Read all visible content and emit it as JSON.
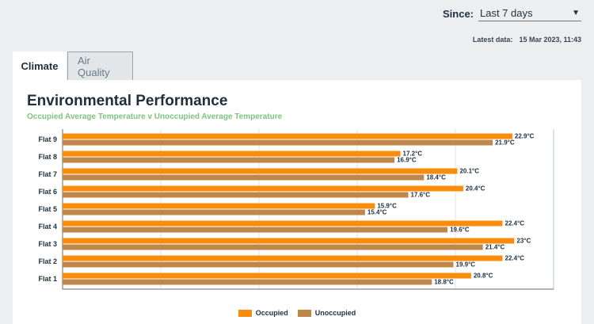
{
  "since": {
    "label": "Since:",
    "selected": "Last 7 days"
  },
  "latest": {
    "label": "Latest data:",
    "value": "15 Mar 2023, 11:43"
  },
  "tabs": [
    {
      "label": "Climate",
      "active": true
    },
    {
      "label": "Air Quality",
      "active": false
    }
  ],
  "colors": {
    "occupied": "#f98c0a",
    "unoccupied": "#c0874b",
    "subtitle": "#7cc47f"
  },
  "chart_data": {
    "type": "bar",
    "orientation": "horizontal",
    "title": "Environmental Performance",
    "subtitle": "Occupied Average Temperature v Unoccupied Average Temperature",
    "categories": [
      "Flat 9",
      "Flat 8",
      "Flat 7",
      "Flat 6",
      "Flat 5",
      "Flat 4",
      "Flat 3",
      "Flat 2",
      "Flat 1"
    ],
    "series": [
      {
        "name": "Occupied",
        "values": [
          22.9,
          17.2,
          20.1,
          20.4,
          15.9,
          22.4,
          23,
          22.4,
          20.8
        ],
        "labels": [
          "22.9°C",
          "17.2°C",
          "20.1°C",
          "20.4°C",
          "15.9°C",
          "22.4°C",
          "23°C",
          "22.4°C",
          "20.8°C"
        ]
      },
      {
        "name": "Unoccupied",
        "values": [
          21.9,
          16.9,
          18.4,
          17.6,
          15.4,
          19.6,
          21.4,
          19.9,
          18.8
        ],
        "labels": [
          "21.9°C",
          "16.9°C",
          "18.4°C",
          "17.6°C",
          "15.4°C",
          "19.6°C",
          "21.4°C",
          "19.9°C",
          "18.8°C"
        ]
      }
    ],
    "xlim": [
      0,
      25
    ],
    "grid": true,
    "legend_position": "bottom"
  }
}
